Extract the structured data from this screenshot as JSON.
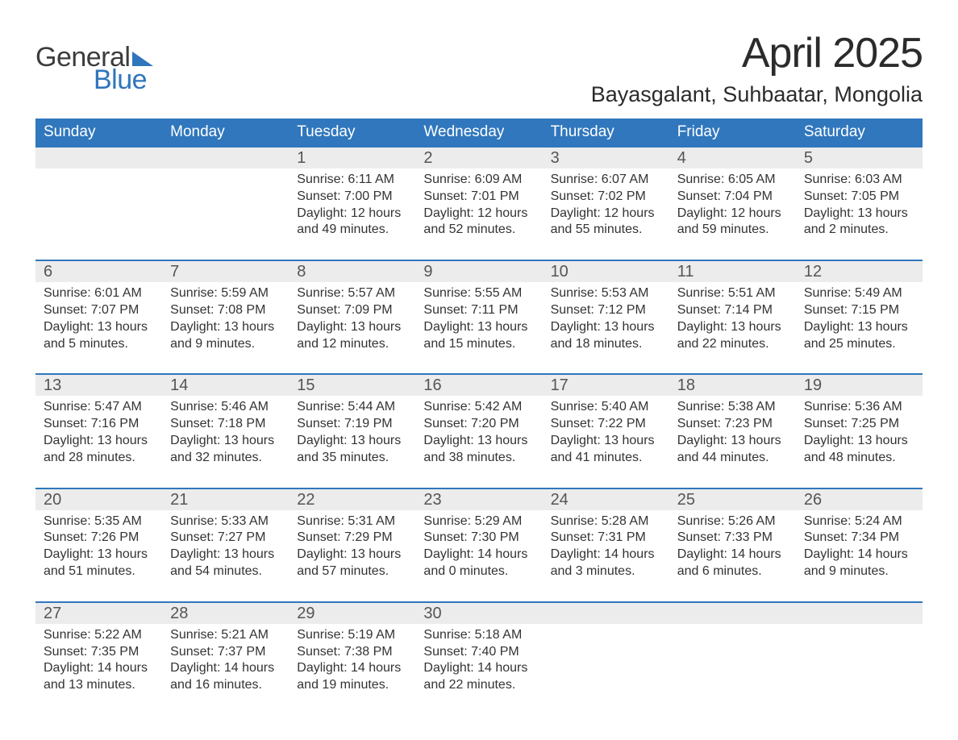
{
  "logo": {
    "word1": "General",
    "word2": "Blue"
  },
  "title": "April 2025",
  "location": "Bayasgalant, Suhbaatar, Mongolia",
  "colors": {
    "header_bg": "#3077bd",
    "header_text": "#ffffff",
    "row_accent": "#3077bd",
    "daynum_bg": "#ececec",
    "text": "#333333",
    "logo_blue": "#2f76bc",
    "logo_dark": "#3c3c3c",
    "page_bg": "#ffffff"
  },
  "typography": {
    "title_fontsize": 52,
    "location_fontsize": 27,
    "th_fontsize": 19,
    "daynum_fontsize": 20,
    "body_fontsize": 16
  },
  "dayHeaders": [
    "Sunday",
    "Monday",
    "Tuesday",
    "Wednesday",
    "Thursday",
    "Friday",
    "Saturday"
  ],
  "weeks": [
    [
      null,
      null,
      {
        "n": "1",
        "sr": "Sunrise: 6:11 AM",
        "ss": "Sunset: 7:00 PM",
        "d1": "Daylight: 12 hours",
        "d2": "and 49 minutes."
      },
      {
        "n": "2",
        "sr": "Sunrise: 6:09 AM",
        "ss": "Sunset: 7:01 PM",
        "d1": "Daylight: 12 hours",
        "d2": "and 52 minutes."
      },
      {
        "n": "3",
        "sr": "Sunrise: 6:07 AM",
        "ss": "Sunset: 7:02 PM",
        "d1": "Daylight: 12 hours",
        "d2": "and 55 minutes."
      },
      {
        "n": "4",
        "sr": "Sunrise: 6:05 AM",
        "ss": "Sunset: 7:04 PM",
        "d1": "Daylight: 12 hours",
        "d2": "and 59 minutes."
      },
      {
        "n": "5",
        "sr": "Sunrise: 6:03 AM",
        "ss": "Sunset: 7:05 PM",
        "d1": "Daylight: 13 hours",
        "d2": "and 2 minutes."
      }
    ],
    [
      {
        "n": "6",
        "sr": "Sunrise: 6:01 AM",
        "ss": "Sunset: 7:07 PM",
        "d1": "Daylight: 13 hours",
        "d2": "and 5 minutes."
      },
      {
        "n": "7",
        "sr": "Sunrise: 5:59 AM",
        "ss": "Sunset: 7:08 PM",
        "d1": "Daylight: 13 hours",
        "d2": "and 9 minutes."
      },
      {
        "n": "8",
        "sr": "Sunrise: 5:57 AM",
        "ss": "Sunset: 7:09 PM",
        "d1": "Daylight: 13 hours",
        "d2": "and 12 minutes."
      },
      {
        "n": "9",
        "sr": "Sunrise: 5:55 AM",
        "ss": "Sunset: 7:11 PM",
        "d1": "Daylight: 13 hours",
        "d2": "and 15 minutes."
      },
      {
        "n": "10",
        "sr": "Sunrise: 5:53 AM",
        "ss": "Sunset: 7:12 PM",
        "d1": "Daylight: 13 hours",
        "d2": "and 18 minutes."
      },
      {
        "n": "11",
        "sr": "Sunrise: 5:51 AM",
        "ss": "Sunset: 7:14 PM",
        "d1": "Daylight: 13 hours",
        "d2": "and 22 minutes."
      },
      {
        "n": "12",
        "sr": "Sunrise: 5:49 AM",
        "ss": "Sunset: 7:15 PM",
        "d1": "Daylight: 13 hours",
        "d2": "and 25 minutes."
      }
    ],
    [
      {
        "n": "13",
        "sr": "Sunrise: 5:47 AM",
        "ss": "Sunset: 7:16 PM",
        "d1": "Daylight: 13 hours",
        "d2": "and 28 minutes."
      },
      {
        "n": "14",
        "sr": "Sunrise: 5:46 AM",
        "ss": "Sunset: 7:18 PM",
        "d1": "Daylight: 13 hours",
        "d2": "and 32 minutes."
      },
      {
        "n": "15",
        "sr": "Sunrise: 5:44 AM",
        "ss": "Sunset: 7:19 PM",
        "d1": "Daylight: 13 hours",
        "d2": "and 35 minutes."
      },
      {
        "n": "16",
        "sr": "Sunrise: 5:42 AM",
        "ss": "Sunset: 7:20 PM",
        "d1": "Daylight: 13 hours",
        "d2": "and 38 minutes."
      },
      {
        "n": "17",
        "sr": "Sunrise: 5:40 AM",
        "ss": "Sunset: 7:22 PM",
        "d1": "Daylight: 13 hours",
        "d2": "and 41 minutes."
      },
      {
        "n": "18",
        "sr": "Sunrise: 5:38 AM",
        "ss": "Sunset: 7:23 PM",
        "d1": "Daylight: 13 hours",
        "d2": "and 44 minutes."
      },
      {
        "n": "19",
        "sr": "Sunrise: 5:36 AM",
        "ss": "Sunset: 7:25 PM",
        "d1": "Daylight: 13 hours",
        "d2": "and 48 minutes."
      }
    ],
    [
      {
        "n": "20",
        "sr": "Sunrise: 5:35 AM",
        "ss": "Sunset: 7:26 PM",
        "d1": "Daylight: 13 hours",
        "d2": "and 51 minutes."
      },
      {
        "n": "21",
        "sr": "Sunrise: 5:33 AM",
        "ss": "Sunset: 7:27 PM",
        "d1": "Daylight: 13 hours",
        "d2": "and 54 minutes."
      },
      {
        "n": "22",
        "sr": "Sunrise: 5:31 AM",
        "ss": "Sunset: 7:29 PM",
        "d1": "Daylight: 13 hours",
        "d2": "and 57 minutes."
      },
      {
        "n": "23",
        "sr": "Sunrise: 5:29 AM",
        "ss": "Sunset: 7:30 PM",
        "d1": "Daylight: 14 hours",
        "d2": "and 0 minutes."
      },
      {
        "n": "24",
        "sr": "Sunrise: 5:28 AM",
        "ss": "Sunset: 7:31 PM",
        "d1": "Daylight: 14 hours",
        "d2": "and 3 minutes."
      },
      {
        "n": "25",
        "sr": "Sunrise: 5:26 AM",
        "ss": "Sunset: 7:33 PM",
        "d1": "Daylight: 14 hours",
        "d2": "and 6 minutes."
      },
      {
        "n": "26",
        "sr": "Sunrise: 5:24 AM",
        "ss": "Sunset: 7:34 PM",
        "d1": "Daylight: 14 hours",
        "d2": "and 9 minutes."
      }
    ],
    [
      {
        "n": "27",
        "sr": "Sunrise: 5:22 AM",
        "ss": "Sunset: 7:35 PM",
        "d1": "Daylight: 14 hours",
        "d2": "and 13 minutes."
      },
      {
        "n": "28",
        "sr": "Sunrise: 5:21 AM",
        "ss": "Sunset: 7:37 PM",
        "d1": "Daylight: 14 hours",
        "d2": "and 16 minutes."
      },
      {
        "n": "29",
        "sr": "Sunrise: 5:19 AM",
        "ss": "Sunset: 7:38 PM",
        "d1": "Daylight: 14 hours",
        "d2": "and 19 minutes."
      },
      {
        "n": "30",
        "sr": "Sunrise: 5:18 AM",
        "ss": "Sunset: 7:40 PM",
        "d1": "Daylight: 14 hours",
        "d2": "and 22 minutes."
      },
      null,
      null,
      null
    ]
  ]
}
